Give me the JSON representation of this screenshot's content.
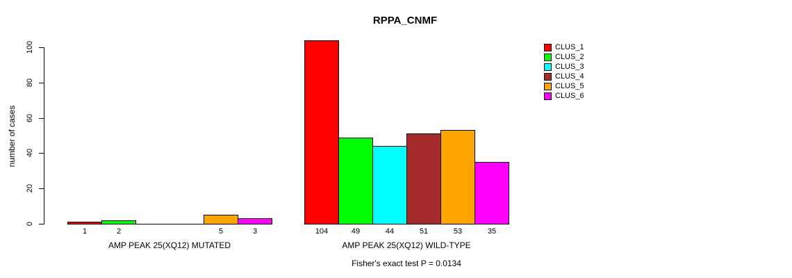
{
  "chart_data": {
    "type": "bar",
    "title": "RPPA_CNMF",
    "ylabel": "number of cases",
    "ylim": [
      0,
      100
    ],
    "yticks": [
      0,
      20,
      40,
      60,
      80,
      100
    ],
    "grid": false,
    "legend_position": "right",
    "legend": [
      "CLUS_1",
      "CLUS_2",
      "CLUS_3",
      "CLUS_4",
      "CLUS_5",
      "CLUS_6"
    ],
    "colors": [
      "#FF0000",
      "#00FF00",
      "#00FFFF",
      "#A52A2A",
      "#FFA500",
      "#FF00FF"
    ],
    "groups": [
      {
        "label": "AMP PEAK 25(XQ12) MUTATED",
        "values": [
          1,
          2,
          0,
          0,
          5,
          3
        ],
        "bar_labels": [
          "1",
          "2",
          "",
          "",
          "5",
          "3"
        ]
      },
      {
        "label": "AMP PEAK 25(XQ12) WILD-TYPE",
        "values": [
          104,
          49,
          44,
          51,
          53,
          35
        ],
        "bar_labels": [
          "104",
          "49",
          "44",
          "51",
          "53",
          "35"
        ]
      }
    ],
    "caption": "Fisher's exact test P = 0.0134",
    "axis_color": "#000000",
    "background_color": "#FFFFFF"
  }
}
